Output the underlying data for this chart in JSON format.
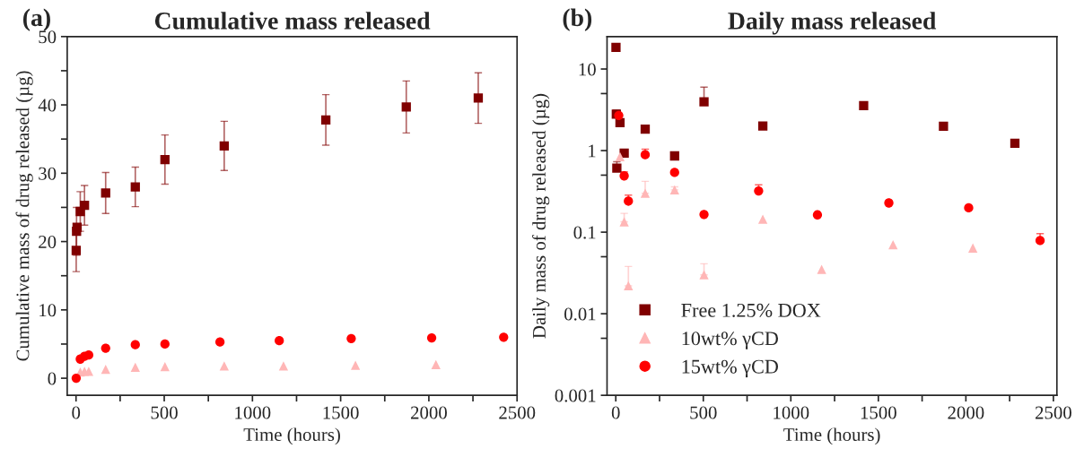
{
  "chart_data": [
    {
      "type": "scatter",
      "title": "Cumulative mass released",
      "xlabel": "Time (hours)",
      "ylabel": "Cumulative mass of drug released (µg)",
      "annotations": [
        "(a)"
      ],
      "xlim": [
        -50,
        2500
      ],
      "xticks": [
        0,
        {
          "value": 250,
          "label": null
        },
        500,
        {
          "value": 750,
          "label": null
        },
        1000,
        {
          "value": 1250,
          "label": null
        },
        1500,
        {
          "value": 1750,
          "label": null
        },
        2000,
        {
          "value": 2250,
          "label": null
        },
        2500
      ],
      "ylim": [
        -2.5,
        50
      ],
      "yticks": [
        0,
        {
          "value": 5,
          "label": null
        },
        10,
        {
          "value": 15,
          "label": null
        },
        20,
        {
          "value": 25,
          "label": null
        },
        30,
        {
          "value": 35,
          "label": null
        },
        40,
        {
          "value": 45,
          "label": null
        },
        50
      ],
      "grid": false,
      "legend": false,
      "series": [
        {
          "color": "#800000",
          "marker": "square",
          "x": [
            1,
            3,
            6,
            24,
            48,
            168,
            336,
            504,
            840,
            1416,
            1872,
            2280
          ],
          "values": [
            18.7,
            21.5,
            22.1,
            24.4,
            25.3,
            27.1,
            28.0,
            32.0,
            34.0,
            37.8,
            39.7,
            41.0
          ],
          "errors": [
            3.1,
            3.5,
            null,
            2.9,
            2.9,
            3.0,
            2.9,
            3.6,
            3.6,
            3.7,
            3.8,
            3.7
          ]
        },
        {
          "color": "#ffb6b6",
          "marker": "triangle",
          "x": [
            24,
            48,
            72,
            168,
            336,
            504,
            840,
            1176,
            1584,
            2040
          ],
          "values": [
            0.9,
            1.0,
            1.0,
            1.3,
            1.6,
            1.7,
            1.8,
            1.8,
            1.9,
            2.0
          ]
        },
        {
          "color": "#ff0000",
          "marker": "circle",
          "x": [
            1,
            24,
            48,
            72,
            168,
            336,
            504,
            816,
            1152,
            1560,
            2016,
            2424
          ],
          "values": [
            0.0,
            2.8,
            3.2,
            3.4,
            4.4,
            4.9,
            5.0,
            5.3,
            5.5,
            5.8,
            5.9,
            6.0
          ]
        }
      ]
    },
    {
      "type": "scatter",
      "title": "Daily mass released",
      "xlabel": "Time (hours)",
      "ylabel": "Daily mass of drug released (µg)",
      "annotations": [
        "(b)"
      ],
      "log": "y",
      "xlim": [
        -50,
        2520
      ],
      "xticks": [
        0,
        {
          "value": 250,
          "label": null
        },
        500,
        {
          "value": 750,
          "label": null
        },
        1000,
        {
          "value": 1250,
          "label": null
        },
        1500,
        {
          "value": 1750,
          "label": null
        },
        2000,
        {
          "value": 2250,
          "label": null
        },
        2500
      ],
      "ylim": [
        0.001,
        25
      ],
      "yticks": [
        0.001,
        {
          "value": 0.005,
          "label": null
        },
        0.01,
        {
          "value": 0.05,
          "label": null
        },
        0.1,
        {
          "value": 0.5,
          "label": null
        },
        1,
        {
          "value": 5,
          "label": null
        },
        10
      ],
      "grid": false,
      "legend": "bottom left",
      "series": [
        {
          "name": "Free 1.25% DOX",
          "color": "#800000",
          "marker": "square",
          "x": [
            1,
            3,
            6,
            24,
            48,
            168,
            336,
            504,
            840,
            1416,
            1872,
            2280
          ],
          "values": [
            18.4,
            2.8,
            0.61,
            2.2,
            0.93,
            1.83,
            0.86,
            3.96,
            2.0,
            3.55,
            1.99,
            1.23
          ],
          "errors": [
            null,
            [
              2.8,
              3.15
            ],
            [
              0.61,
              0.73
            ],
            null,
            null,
            null,
            null,
            [
              3.96,
              6.0
            ],
            null,
            null,
            null,
            null
          ]
        },
        {
          "name": "10wt% γCD",
          "color": "#ffb6b6",
          "marker": "triangle",
          "x": [
            24,
            48,
            72,
            168,
            336,
            504,
            840,
            1176,
            1584,
            2040
          ],
          "values": [
            0.84,
            0.134,
            0.022,
            0.3,
            0.33,
            0.03,
            0.144,
            0.035,
            0.07,
            0.064
          ],
          "errors": [
            null,
            [
              0.134,
              0.17
            ],
            [
              0.022,
              0.038
            ],
            [
              0.3,
              0.42
            ],
            [
              0.33,
              0.36
            ],
            [
              0.03,
              0.041
            ],
            null,
            null,
            null,
            null
          ]
        },
        {
          "name": "15wt% γCD",
          "color": "#ff0000",
          "marker": "circle",
          "x": [
            17,
            48,
            72,
            168,
            336,
            504,
            816,
            1152,
            1560,
            2016,
            2424
          ],
          "values": [
            2.7,
            0.49,
            0.24,
            0.89,
            0.54,
            0.165,
            0.32,
            0.163,
            0.228,
            0.199,
            0.079
          ],
          "errors": [
            null,
            [
              0.49,
              0.55
            ],
            [
              0.24,
              0.285
            ],
            [
              0.89,
              1.04
            ],
            null,
            null,
            [
              0.32,
              0.38
            ],
            null,
            null,
            null,
            [
              0.079,
              0.096
            ]
          ]
        }
      ]
    }
  ]
}
